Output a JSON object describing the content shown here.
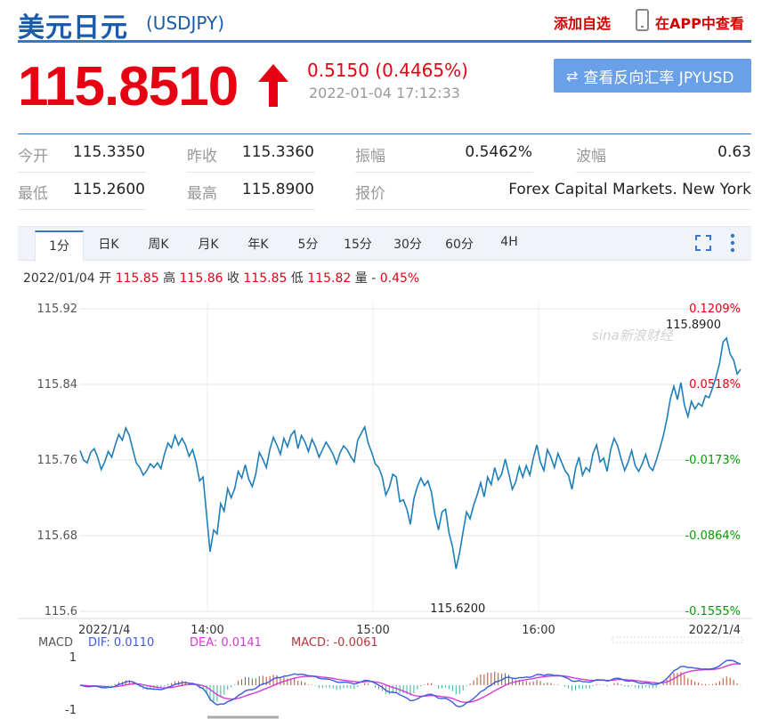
{
  "header": {
    "title": "美元日元",
    "code": "(USDJPY)",
    "add_favorite": "添加自选",
    "app_view": "在APP中查看"
  },
  "quote": {
    "price": "115.8510",
    "change": "0.5150 (0.4465%)",
    "time": "2022-01-04 17:12:33",
    "reverse_button": "查看反向汇率 JPYUSD"
  },
  "stats": [
    {
      "label": "今开",
      "value": "115.3350"
    },
    {
      "label": "昨收",
      "value": "115.3360"
    },
    {
      "label": "振幅",
      "value": "0.5462%"
    },
    {
      "label": "波幅",
      "value": "0.63"
    },
    {
      "label": "最低",
      "value": "115.2600"
    },
    {
      "label": "最高",
      "value": "115.8900"
    },
    {
      "label": "报价",
      "value": "Forex Capital Markets. New York"
    }
  ],
  "tabs": [
    "1分",
    "日K",
    "周K",
    "月K",
    "年K",
    "5分",
    "15分",
    "30分",
    "60分",
    "4H"
  ],
  "active_tab": "1分",
  "ohlc": {
    "date": "2022/01/04",
    "open_label": "开",
    "open": "115.85",
    "high_label": "高",
    "high": "115.86",
    "close_label": "收",
    "close": "115.85",
    "low_label": "低",
    "low": "115.82",
    "volume_label": "量",
    "volume": "-",
    "change": "0.45%"
  },
  "colors": {
    "brand_blue": "#1a5cab",
    "up_red": "#e60012",
    "down_green": "#0a9a0a",
    "line_blue": "#1e7fb8",
    "dif_blue": "#3b5bdb",
    "dea_pink": "#d63ad6"
  },
  "chart_data": {
    "type": "line",
    "title": "",
    "x_ticks": [
      "2022/1/4",
      "14:00",
      "15:00",
      "16:00",
      "2022/1/4"
    ],
    "y_ticks": [
      "115.92",
      "115.84",
      "115.76",
      "115.68",
      "115.6"
    ],
    "pct_ticks": [
      "0.1209%",
      "0.0518%",
      "-0.0173%",
      "-0.0864%",
      "-0.1555%"
    ],
    "ylim": [
      115.6,
      115.92
    ],
    "annotations": {
      "high": "115.8900",
      "low": "115.6200"
    },
    "watermark": "sina新浪财经",
    "series": [
      {
        "values": [
          115.77,
          115.76,
          115.757,
          115.768,
          115.772,
          115.763,
          115.75,
          115.758,
          115.769,
          115.763,
          115.776,
          115.787,
          115.781,
          115.794,
          115.786,
          115.771,
          115.757,
          115.752,
          115.744,
          115.749,
          115.756,
          115.752,
          115.757,
          115.751,
          115.766,
          115.778,
          115.773,
          115.786,
          115.776,
          115.783,
          115.776,
          115.764,
          115.771,
          115.758,
          115.738,
          115.742,
          115.702,
          115.663,
          115.686,
          115.682,
          115.714,
          115.706,
          115.73,
          115.72,
          115.73,
          115.748,
          115.741,
          115.755,
          115.74,
          115.732,
          115.745,
          115.768,
          115.761,
          115.752,
          115.771,
          115.784,
          115.776,
          115.766,
          115.783,
          115.774,
          115.786,
          115.791,
          115.772,
          115.786,
          115.779,
          115.769,
          115.782,
          115.774,
          115.763,
          115.771,
          115.779,
          115.773,
          115.766,
          115.756,
          115.768,
          115.775,
          115.771,
          115.764,
          115.758,
          115.781,
          115.788,
          115.795,
          115.778,
          115.768,
          115.756,
          115.752,
          115.742,
          115.723,
          115.731,
          115.745,
          115.742,
          115.716,
          115.718,
          115.708,
          115.692,
          115.719,
          115.732,
          115.741,
          115.733,
          115.738,
          115.726,
          115.702,
          115.686,
          115.705,
          115.708,
          115.683,
          115.668,
          115.645,
          115.662,
          115.684,
          115.705,
          115.698,
          115.712,
          115.723,
          115.736,
          115.721,
          115.742,
          115.734,
          115.752,
          115.739,
          115.745,
          115.761,
          115.746,
          115.729,
          115.737,
          115.753,
          115.742,
          115.754,
          115.744,
          115.762,
          115.776,
          115.758,
          115.749,
          115.771,
          115.763,
          115.752,
          115.767,
          115.758,
          115.749,
          115.744,
          115.729,
          115.751,
          115.763,
          115.744,
          115.752,
          115.748,
          115.767,
          115.776,
          115.758,
          115.762,
          115.748,
          115.771,
          115.783,
          115.775,
          115.761,
          115.749,
          115.758,
          115.77,
          115.754,
          115.748,
          115.756,
          115.766,
          115.753,
          115.749,
          115.76,
          115.772,
          115.786,
          115.803,
          115.825,
          115.838,
          115.824,
          115.842,
          115.818,
          115.806,
          115.822,
          115.814,
          115.82,
          115.817,
          115.828,
          115.826,
          115.836,
          115.848,
          115.862,
          115.885,
          115.889,
          115.872,
          115.866,
          115.851,
          115.856
        ]
      }
    ],
    "macd": {
      "label": "MACD",
      "dif_label": "DIF: 0.0110",
      "dea_label": "DEA: 0.0141",
      "macd_label": "MACD: -0.0061",
      "y_ticks": [
        "1",
        "-1"
      ]
    }
  }
}
